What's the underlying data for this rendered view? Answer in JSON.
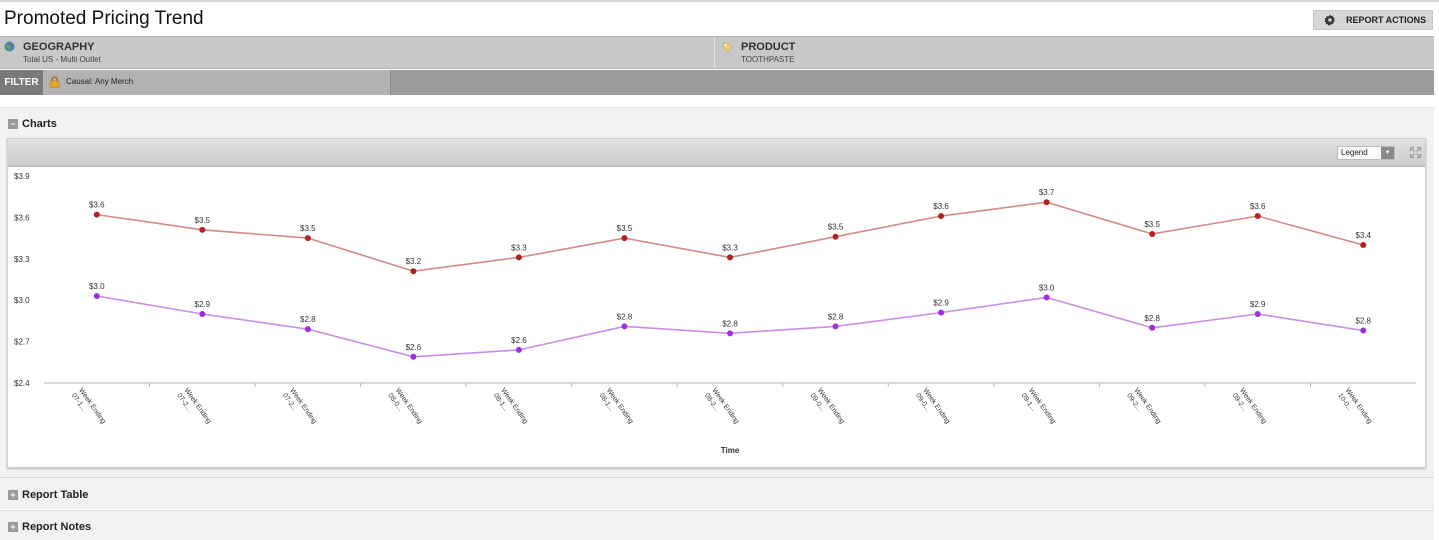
{
  "page_title": "Promoted Pricing Trend",
  "report_actions_label": "REPORT ACTIONS",
  "context": {
    "geography": {
      "label": "GEOGRAPHY",
      "value": "Total US - Multi Outlet"
    },
    "product": {
      "label": "PRODUCT",
      "value": "TOOTHPASTE"
    }
  },
  "filter": {
    "label": "FILTER",
    "chip": "Causal: Any Merch"
  },
  "sections": {
    "charts": "Charts",
    "report_table": "Report Table",
    "report_notes": "Report Notes"
  },
  "chart_toolbar": {
    "legend_select": "Legend"
  },
  "colors": {
    "series1": "#d48a8a",
    "series1_dot": "#b22222",
    "series2": "#c98ee6",
    "series2_dot": "#9b30e0"
  },
  "chart_data": {
    "type": "line",
    "xlabel": "Time",
    "ylabel": "",
    "ylim": [
      2.4,
      3.9
    ],
    "yticks": [
      "$2.4",
      "$2.7",
      "$3.0",
      "$3.3",
      "$3.6",
      "$3.9"
    ],
    "categories": [
      "Week Ending 07-1...",
      "Week Ending 07-2...",
      "Week Ending 07-2...",
      "Week Ending 08-0...",
      "Week Ending 08-1...",
      "Week Ending 08-1...",
      "Week Ending 08-2...",
      "Week Ending 09-0...",
      "Week Ending 09-0...",
      "Week Ending 09-1...",
      "Week Ending 09-2...",
      "Week Ending 09-2...",
      "Week Ending 10-0..."
    ],
    "series": [
      {
        "values": [
          3.62,
          3.51,
          3.45,
          3.21,
          3.31,
          3.45,
          3.31,
          3.46,
          3.61,
          3.71,
          3.48,
          3.61,
          3.4
        ],
        "labels": [
          "$3.6",
          "$3.5",
          "$3.5",
          "$3.2",
          "$3.3",
          "$3.5",
          "$3.3",
          "$3.5",
          "$3.6",
          "$3.7",
          "$3.5",
          "$3.6",
          "$3.4"
        ]
      },
      {
        "values": [
          3.03,
          2.9,
          2.79,
          2.59,
          2.64,
          2.81,
          2.76,
          2.81,
          2.91,
          3.02,
          2.8,
          2.9,
          2.78
        ],
        "labels": [
          "$3.0",
          "$2.9",
          "$2.8",
          "$2.6",
          "$2.6",
          "$2.8",
          "$2.8",
          "$2.8",
          "$2.9",
          "$3.0",
          "$2.8",
          "$2.9",
          "$2.8"
        ]
      }
    ]
  }
}
